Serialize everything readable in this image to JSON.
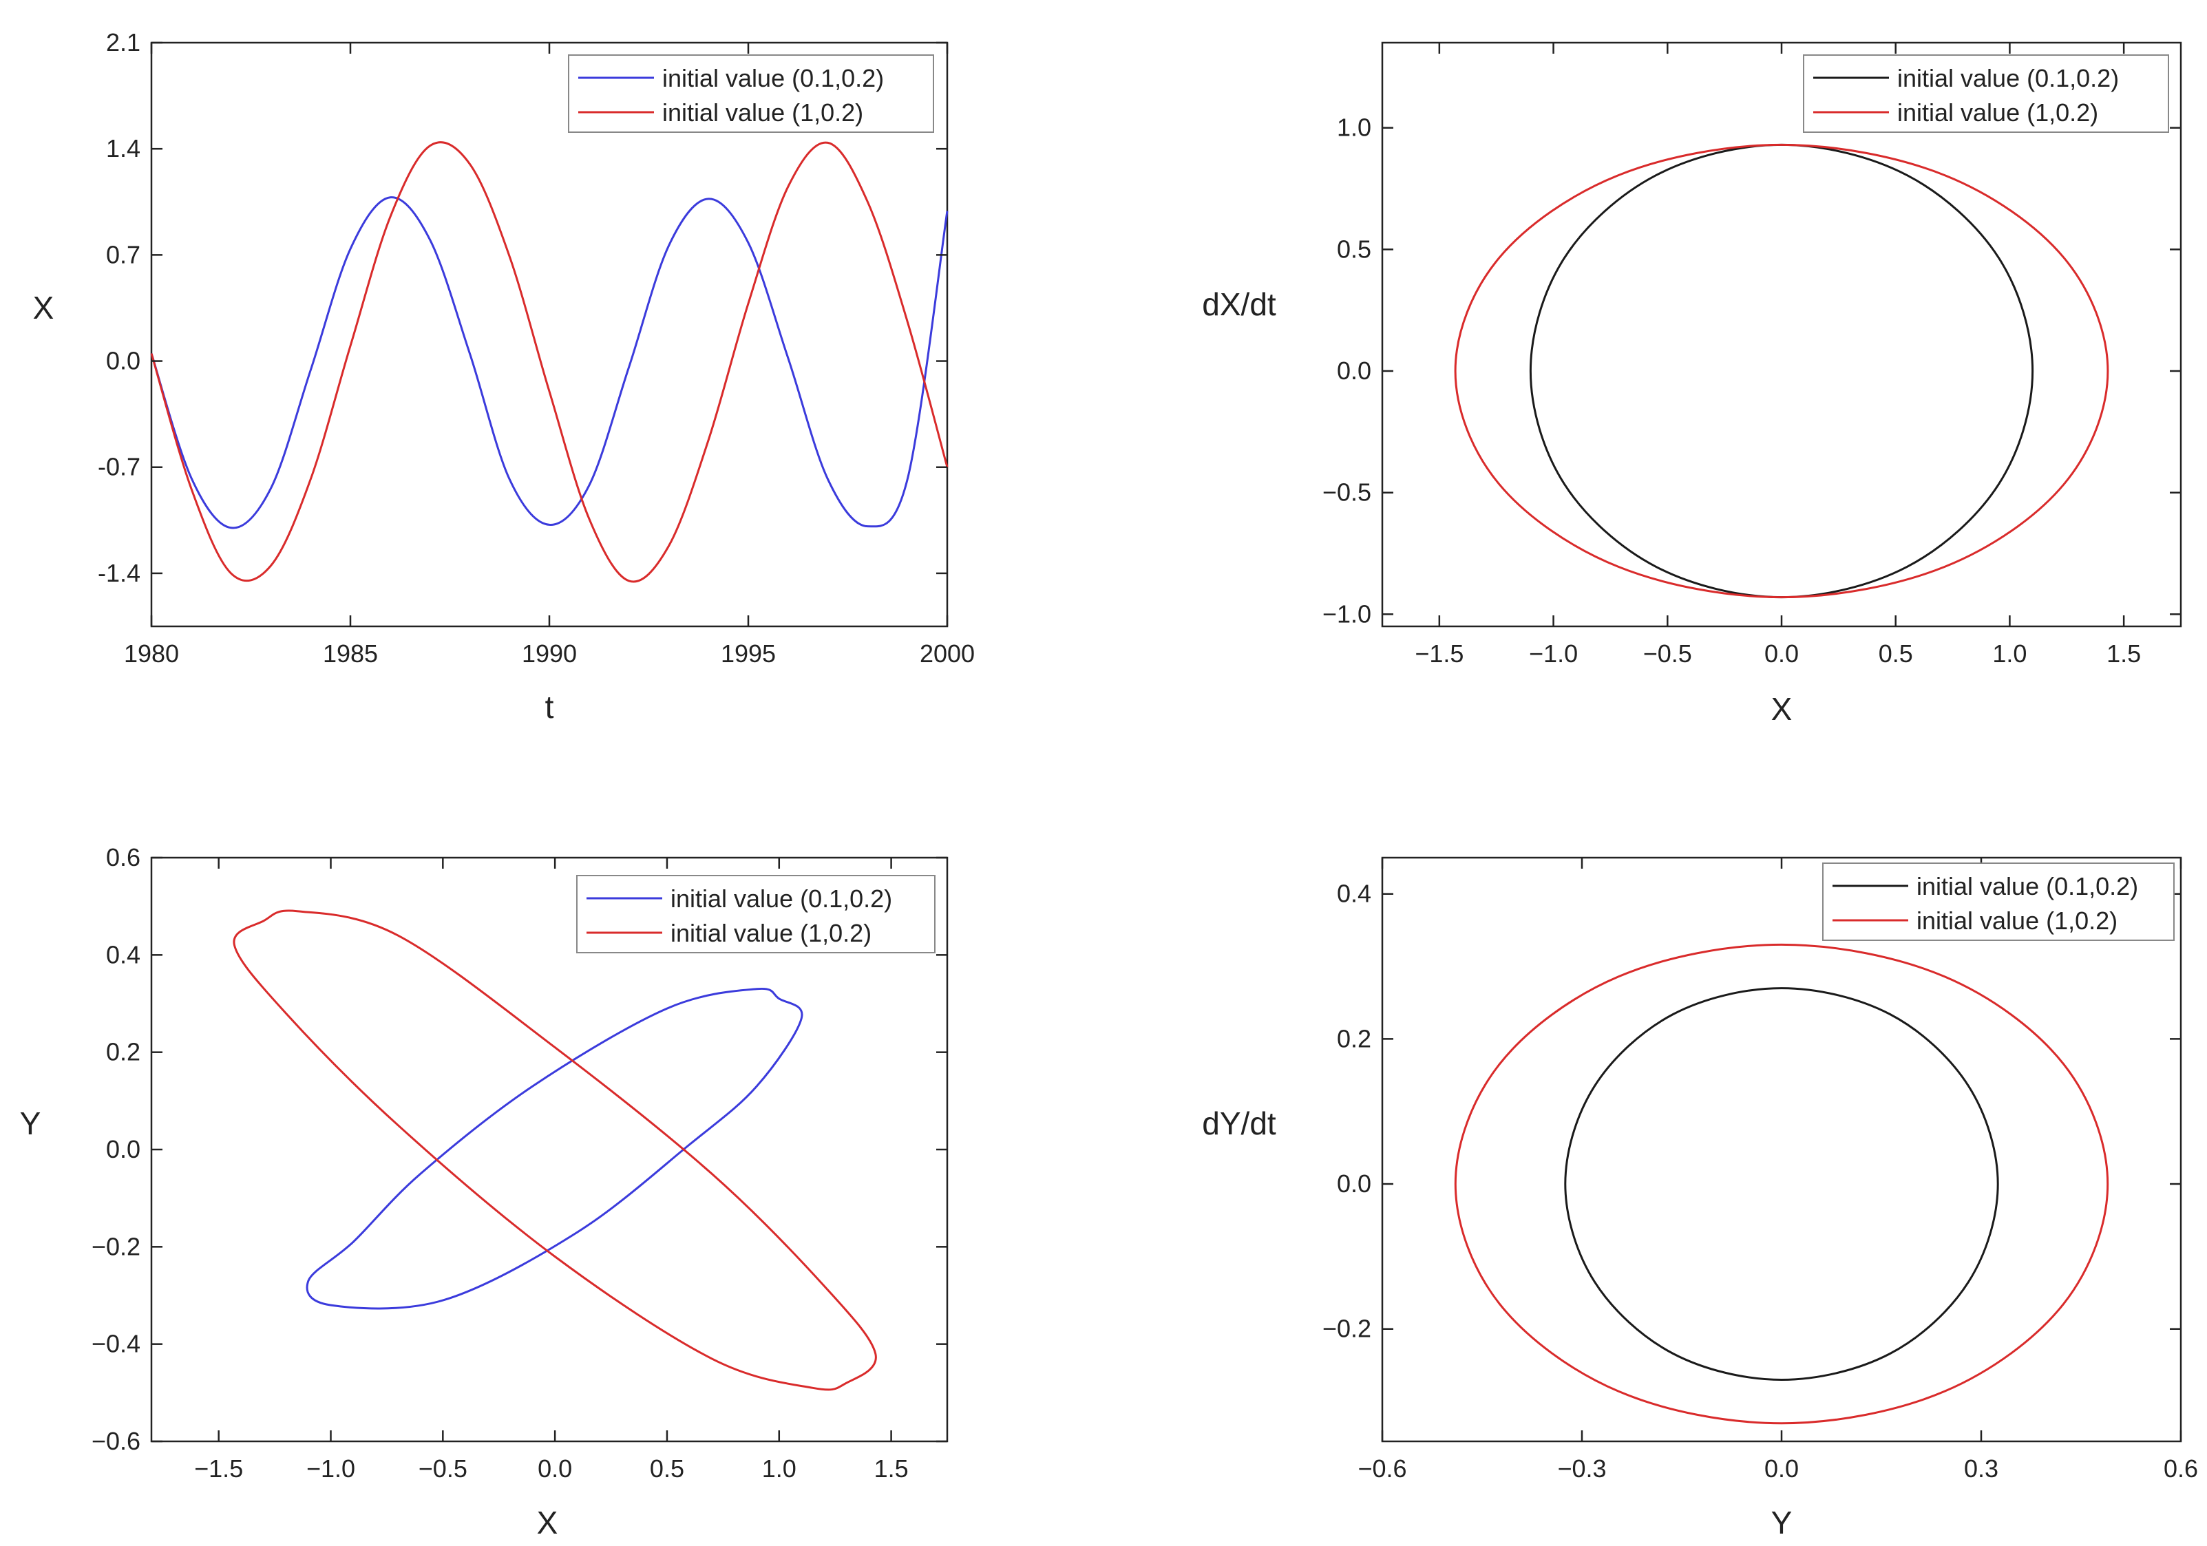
{
  "chart_data": [
    {
      "type": "line",
      "xlabel": "t",
      "ylabel": "X",
      "xlim": [
        1980,
        2000
      ],
      "ylim": [
        -1.75,
        2.1
      ],
      "xticks": [
        "1980",
        "1985",
        "1990",
        "1995",
        "2000"
      ],
      "xtick_values": [
        1980,
        1985,
        1990,
        1995,
        2000
      ],
      "yticks": [
        "2.1",
        "1.4",
        "0.7",
        "0.0",
        "-0.7",
        "-1.4"
      ],
      "ytick_values": [
        2.1,
        1.4,
        0.7,
        0.0,
        -0.7,
        -1.4
      ],
      "legend_position": "top-right",
      "series": [
        {
          "name": "initial value (0.1,0.2)",
          "color": "#3b3bdc",
          "x": [
            1980,
            1981,
            1982,
            1983,
            1984,
            1985,
            1986,
            1987,
            1988,
            1989,
            1990,
            1991,
            1992,
            1993,
            1994,
            1995,
            1996,
            1997,
            1998,
            1999,
            2000
          ],
          "y": [
            0.05,
            -0.77,
            -1.1,
            -0.84,
            -0.06,
            0.74,
            1.08,
            0.8,
            0.05,
            -0.78,
            -1.08,
            -0.82,
            -0.04,
            0.76,
            1.07,
            0.78,
            0.02,
            -0.78,
            -1.09,
            -0.78,
            0.99
          ]
        },
        {
          "name": "initial value (1,0.2)",
          "color": "#d92b2b",
          "x": [
            1980,
            1981,
            1982,
            1983,
            1984,
            1985,
            1986,
            1987,
            1988,
            1989,
            1990,
            1991,
            1992,
            1993,
            1994,
            1995,
            1996,
            1997,
            1998,
            1999,
            2000
          ],
          "y": [
            0.05,
            -0.84,
            -1.4,
            -1.35,
            -0.78,
            0.1,
            0.95,
            1.42,
            1.3,
            0.69,
            -0.2,
            -1.04,
            -1.45,
            -1.22,
            -0.52,
            0.38,
            1.15,
            1.44,
            1.05,
            0.26,
            -0.7
          ]
        }
      ]
    },
    {
      "type": "line",
      "xlabel": "X",
      "ylabel": "dX/dt",
      "xlim": [
        -1.75,
        1.75
      ],
      "ylim": [
        -1.05,
        1.35
      ],
      "xticks": [
        "−1.5",
        "−1.0",
        "−0.5",
        "0.0",
        "0.5",
        "1.0",
        "1.5"
      ],
      "xtick_values": [
        -1.5,
        -1.0,
        -0.5,
        0.0,
        0.5,
        1.0,
        1.5
      ],
      "yticks": [
        "1.0",
        "0.5",
        "0.0",
        "−0.5",
        "−1.0"
      ],
      "ytick_values": [
        1.0,
        0.5,
        0.0,
        -0.5,
        -1.0
      ],
      "legend_position": "top-right",
      "series": [
        {
          "name": "initial value (0.1,0.2)",
          "color": "#1a1a1a",
          "x": [
            1.1,
            0.952,
            0.55,
            0.0,
            -0.55,
            -0.952,
            -1.1,
            -0.952,
            -0.55,
            0.0,
            0.55,
            0.952,
            1.1
          ],
          "y": [
            0.0,
            0.465,
            0.805,
            0.93,
            0.805,
            0.465,
            0.0,
            -0.465,
            -0.805,
            -0.93,
            -0.805,
            -0.465,
            0.0
          ]
        },
        {
          "name": "initial value (1,0.2)",
          "color": "#d92b2b",
          "x": [
            1.43,
            1.238,
            0.715,
            0.0,
            -0.715,
            -1.238,
            -1.43,
            -1.238,
            -0.715,
            0.0,
            0.715,
            1.238,
            1.43
          ],
          "y": [
            0.0,
            0.465,
            0.805,
            0.93,
            0.805,
            0.465,
            0.0,
            -0.465,
            -0.805,
            -0.93,
            -0.805,
            -0.465,
            0.0
          ]
        }
      ]
    },
    {
      "type": "line",
      "xlabel": "X",
      "ylabel": "Y",
      "xlim": [
        -1.8,
        1.75
      ],
      "ylim": [
        -0.6,
        0.6
      ],
      "xticks": [
        "−1.5",
        "−1.0",
        "−0.5",
        "0.0",
        "0.5",
        "1.0",
        "1.5"
      ],
      "xtick_values": [
        -1.5,
        -1.0,
        -0.5,
        0.0,
        0.5,
        1.0,
        1.5
      ],
      "yticks": [
        "0.6",
        "0.4",
        "0.2",
        "0.0",
        "−0.2",
        "−0.4",
        "−0.6"
      ],
      "ytick_values": [
        0.6,
        0.4,
        0.2,
        0.0,
        -0.2,
        -0.4,
        -0.6
      ],
      "legend_position": "top-right",
      "series": [
        {
          "name": "initial value (0.1,0.2)",
          "color": "#3b3bdc",
          "x": [
            1.1,
            1.0,
            0.9,
            0.5,
            -0.1,
            -0.6,
            -0.9,
            -1.1,
            -1.0,
            -0.5,
            0.1,
            0.6,
            0.9,
            1.1
          ],
          "y": [
            0.27,
            0.31,
            0.33,
            0.29,
            0.13,
            -0.05,
            -0.19,
            -0.27,
            -0.32,
            -0.31,
            -0.17,
            0.01,
            0.13,
            0.27
          ]
        },
        {
          "name": "initial value (1,0.2)",
          "color": "#d92b2b",
          "x": [
            -1.43,
            -1.3,
            -1.15,
            -0.7,
            0.0,
            0.7,
            1.2,
            1.43,
            1.3,
            1.15,
            0.7,
            0.0,
            -0.7,
            -1.2,
            -1.43
          ],
          "y": [
            0.42,
            0.47,
            0.49,
            0.44,
            0.21,
            -0.05,
            -0.28,
            -0.42,
            -0.48,
            -0.49,
            -0.43,
            -0.22,
            0.05,
            0.28,
            0.42
          ]
        }
      ]
    },
    {
      "type": "line",
      "xlabel": "Y",
      "ylabel": "dY/dt",
      "xlim": [
        -0.6,
        0.6
      ],
      "ylim": [
        -0.355,
        0.45
      ],
      "xticks": [
        "−0.6",
        "−0.3",
        "0.0",
        "0.3",
        "0.6"
      ],
      "xtick_values": [
        -0.6,
        -0.3,
        0.0,
        0.3,
        0.6
      ],
      "yticks": [
        "0.4",
        "0.2",
        "0.0",
        "−0.2"
      ],
      "ytick_values": [
        0.4,
        0.2,
        0.0,
        -0.2
      ],
      "legend_position": "top-right",
      "series": [
        {
          "name": "initial value (0.1,0.2)",
          "color": "#1a1a1a",
          "x": [
            0.325,
            0.281,
            0.163,
            0.0,
            -0.163,
            -0.281,
            -0.325,
            -0.281,
            -0.163,
            0.0,
            0.163,
            0.281,
            0.325
          ],
          "y": [
            0.0,
            0.135,
            0.234,
            0.27,
            0.234,
            0.135,
            0.0,
            -0.135,
            -0.234,
            -0.27,
            -0.234,
            -0.135,
            0.0
          ]
        },
        {
          "name": "initial value (1,0.2)",
          "color": "#d92b2b",
          "x": [
            0.49,
            0.424,
            0.245,
            0.0,
            -0.245,
            -0.424,
            -0.49,
            -0.424,
            -0.245,
            0.0,
            0.245,
            0.424,
            0.49
          ],
          "y": [
            0.0,
            0.165,
            0.286,
            0.33,
            0.286,
            0.165,
            0.0,
            -0.165,
            -0.286,
            -0.33,
            -0.286,
            -0.165,
            0.0
          ]
        }
      ]
    }
  ]
}
